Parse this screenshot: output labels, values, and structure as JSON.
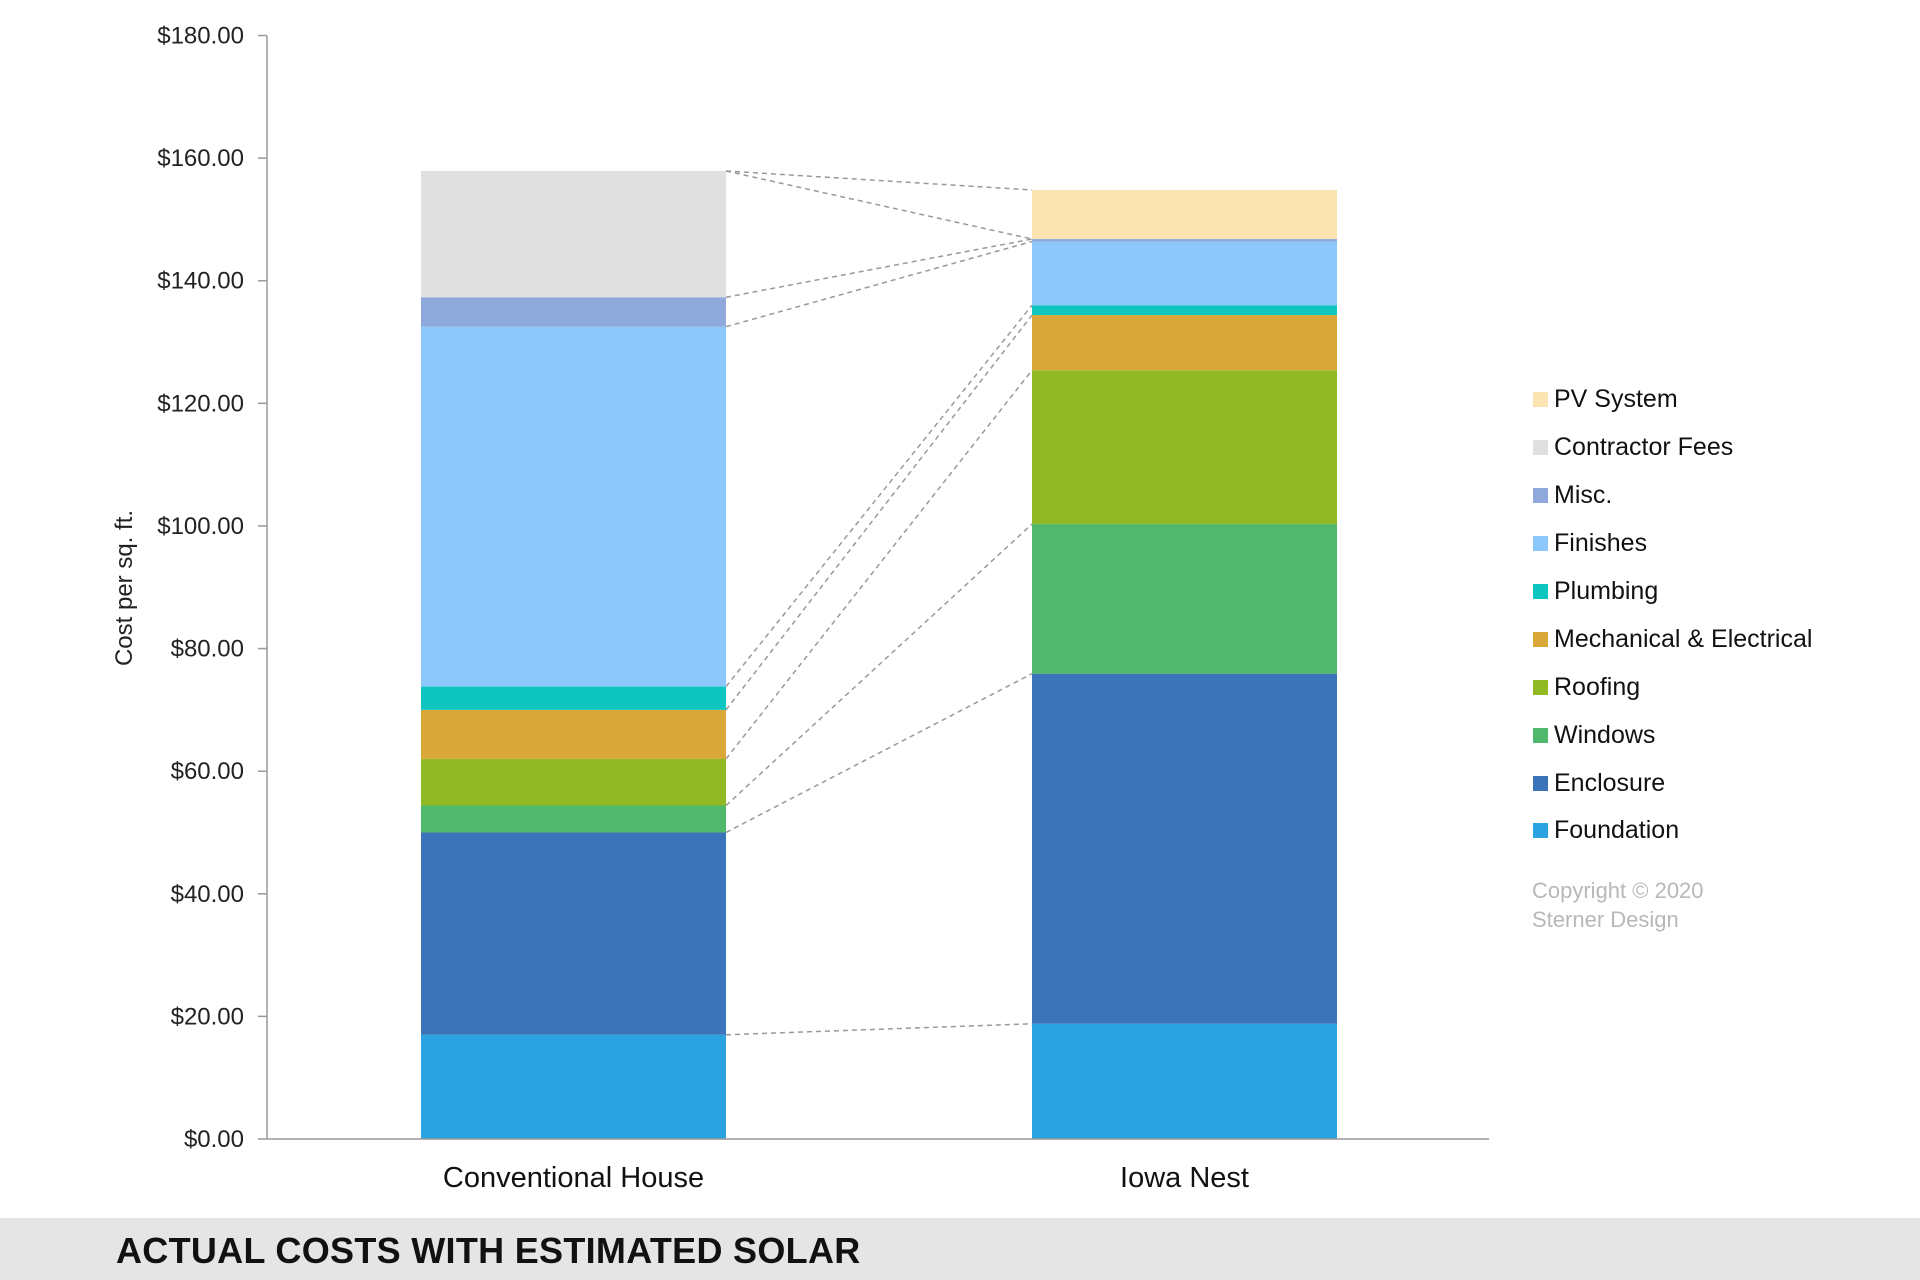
{
  "chart_data": {
    "type": "bar",
    "stacked": true,
    "title": "ACTUAL COSTS WITH ESTIMATED SOLAR",
    "xlabel": "",
    "ylabel": "Cost per sq. ft.",
    "ylim": [
      0,
      180
    ],
    "yticks": [
      0,
      20,
      40,
      60,
      80,
      100,
      120,
      140,
      160,
      180
    ],
    "ytick_labels": [
      "$0.00",
      "$20.00",
      "$40.00",
      "$60.00",
      "$80.00",
      "$100.00",
      "$120.00",
      "$140.00",
      "$160.00",
      "$180.00"
    ],
    "categories": [
      "Conventional House",
      "Iowa Nest"
    ],
    "series": [
      {
        "name": "Foundation",
        "color": "#2aa3e0",
        "values": [
          17.0,
          18.8
        ]
      },
      {
        "name": "Enclosure",
        "color": "#3b74b9",
        "values": [
          33.0,
          57.1
        ]
      },
      {
        "name": "Windows",
        "color": "#50b86c",
        "values": [
          4.4,
          24.4
        ]
      },
      {
        "name": "Roofing",
        "color": "#91b923",
        "values": [
          7.6,
          25.1
        ]
      },
      {
        "name": "Mechanical & Electrical",
        "color": "#d9a838",
        "values": [
          8.0,
          9.0
        ]
      },
      {
        "name": "Plumbing",
        "color": "#0fc5c0",
        "values": [
          3.8,
          1.6
        ]
      },
      {
        "name": "Finishes",
        "color": "#8cc8fb",
        "values": [
          58.7,
          10.4
        ]
      },
      {
        "name": "Misc.",
        "color": "#8fa9dc",
        "values": [
          4.8,
          0.4
        ]
      },
      {
        "name": "Contractor Fees",
        "color": "#e0e0e0",
        "values": [
          20.6,
          0
        ]
      },
      {
        "name": "PV System",
        "color": "#fbe4b2",
        "values": [
          0,
          8.0
        ]
      }
    ],
    "connector_lines": true,
    "grid": false,
    "legend_position": "right"
  },
  "legend_order": [
    "PV System",
    "Contractor Fees",
    "Misc.",
    "Finishes",
    "Plumbing",
    "Mechanical & Electrical",
    "Roofing",
    "Windows",
    "Enclosure",
    "Foundation"
  ],
  "copyright": {
    "line1": "Copyright © 2020",
    "line2": "Sterner Design"
  },
  "footer": {
    "title": "ACTUAL COSTS WITH ESTIMATED SOLAR"
  }
}
